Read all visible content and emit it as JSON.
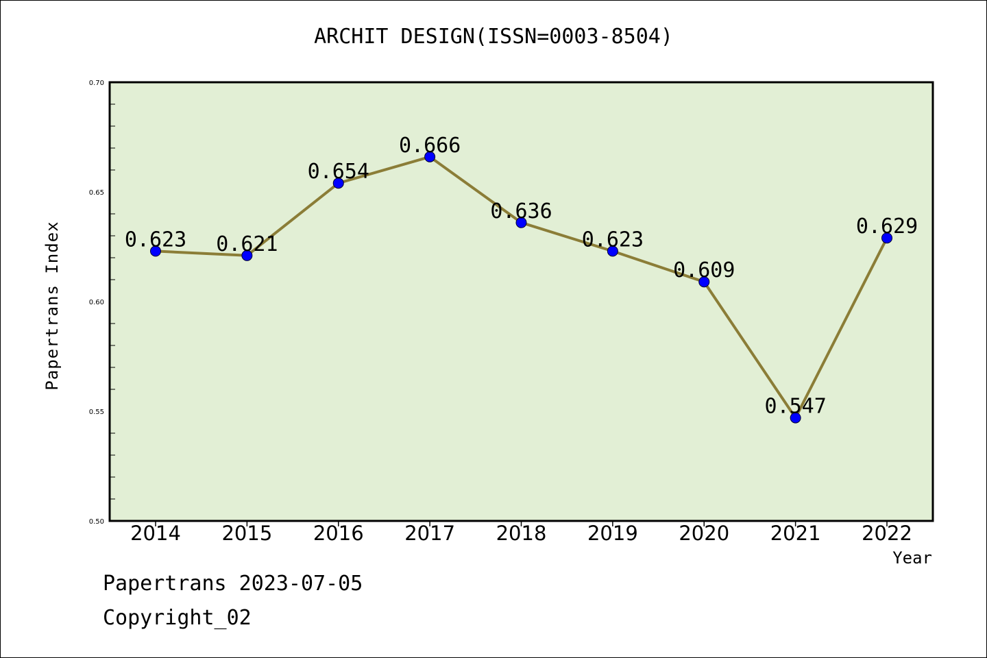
{
  "chart_data": {
    "type": "line",
    "title": "ARCHIT DESIGN(ISSN=0003-8504)",
    "xlabel": "Year",
    "ylabel": "Papertrans Index",
    "categories": [
      "2014",
      "2015",
      "2016",
      "2017",
      "2018",
      "2019",
      "2020",
      "2021",
      "2022"
    ],
    "values": [
      0.623,
      0.621,
      0.654,
      0.666,
      0.636,
      0.623,
      0.609,
      0.547,
      0.629
    ],
    "data_labels": [
      "0.623",
      "0.621",
      "0.654",
      "0.666",
      "0.636",
      "0.623",
      "0.609",
      "0.547",
      "0.629"
    ],
    "ylim": [
      0.5,
      0.7
    ],
    "yticks": [
      "0.50",
      "0.55",
      "0.60",
      "0.65",
      "0.70"
    ],
    "grid": false,
    "legend": "none",
    "colors": {
      "plot_background": "#e2efd5",
      "line": "#8b7d37",
      "marker": "#0000ff"
    }
  },
  "footer": {
    "line1": "Papertrans 2023-07-05",
    "line2": "Copyright_02"
  }
}
